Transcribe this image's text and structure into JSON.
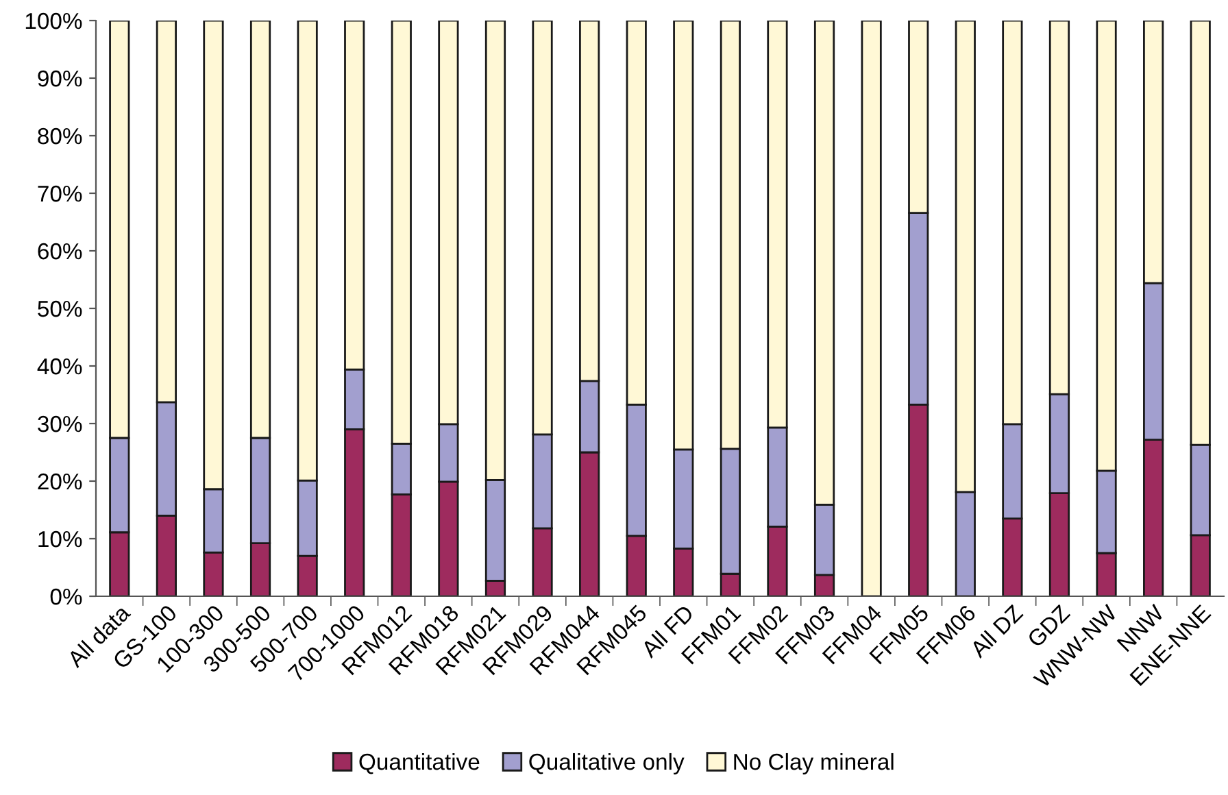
{
  "chart_data": {
    "type": "bar",
    "stacked": true,
    "legend": "bottom",
    "grid": false,
    "categories": [
      "All data",
      "GS-100",
      "100-300",
      "300-500",
      "500-700",
      "700-1000",
      "RFM012",
      "RFM018",
      "RFM021",
      "RFM029",
      "RFM044",
      "RFM045",
      "All FD",
      "FFM01",
      "FFM02",
      "FFM03",
      "FFM04",
      "FFM05",
      "FFM06",
      "All DZ",
      "GDZ",
      "WNW-NW",
      "NNW",
      "ENE-NNE"
    ],
    "series": [
      {
        "name": "Quantitative",
        "color": "#9e2b5e",
        "values": [
          11.1,
          14.0,
          7.6,
          9.2,
          7.0,
          29.0,
          17.7,
          19.9,
          2.7,
          11.8,
          25.0,
          10.5,
          8.3,
          3.9,
          12.1,
          3.7,
          0,
          33.3,
          0,
          13.5,
          17.9,
          7.5,
          27.2,
          10.6
        ]
      },
      {
        "name": "Qualitative only",
        "color": "#a29fcf",
        "values": [
          16.4,
          19.7,
          11.0,
          18.3,
          13.1,
          10.4,
          8.8,
          10.0,
          17.5,
          16.3,
          12.4,
          22.8,
          17.2,
          21.7,
          17.2,
          12.2,
          0,
          33.3,
          18.1,
          16.4,
          17.2,
          14.3,
          27.2,
          15.7
        ]
      },
      {
        "name": "No Clay mineral",
        "color": "#fff8d6",
        "values": [
          72.5,
          66.3,
          81.4,
          72.5,
          79.9,
          60.6,
          73.5,
          70.1,
          79.8,
          71.9,
          62.6,
          66.7,
          74.5,
          74.4,
          70.7,
          84.1,
          100,
          33.4,
          81.9,
          70.1,
          64.9,
          78.2,
          45.6,
          73.7
        ]
      }
    ],
    "ylim": [
      0,
      100
    ],
    "yticks": [
      {
        "value": 0,
        "label": "0%"
      },
      {
        "value": 10,
        "label": "10%"
      },
      {
        "value": 20,
        "label": "20%"
      },
      {
        "value": 30,
        "label": "30%"
      },
      {
        "value": 40,
        "label": "40%"
      },
      {
        "value": 50,
        "label": "50%"
      },
      {
        "value": 60,
        "label": "60%"
      },
      {
        "value": 70,
        "label": "70%"
      },
      {
        "value": 80,
        "label": "80%"
      },
      {
        "value": 90,
        "label": "90%"
      },
      {
        "value": 100,
        "label": "100%"
      }
    ]
  }
}
